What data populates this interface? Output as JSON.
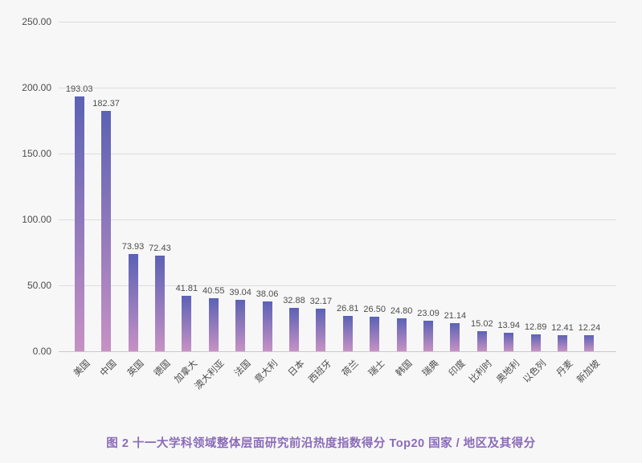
{
  "chart_data": {
    "type": "bar",
    "title": "图 2 十一大学科领域整体层面研究前沿热度指数得分 Top20 国家 / 地区及其得分",
    "categories": [
      "美国",
      "中国",
      "英国",
      "德国",
      "加拿大",
      "澳大利亚",
      "法国",
      "意大利",
      "日本",
      "西班牙",
      "荷兰",
      "瑞士",
      "韩国",
      "瑞典",
      "印度",
      "比利时",
      "奥地利",
      "以色列",
      "丹麦",
      "新加坡"
    ],
    "values": [
      193.03,
      182.37,
      73.93,
      72.43,
      41.81,
      40.55,
      39.04,
      38.06,
      32.88,
      32.17,
      26.81,
      26.5,
      24.8,
      23.09,
      21.14,
      15.02,
      13.94,
      12.89,
      12.41,
      12.24
    ],
    "y_ticks": [
      "0.00",
      "50.00",
      "100.00",
      "150.00",
      "200.00",
      "250.00"
    ],
    "ylim": [
      0,
      250
    ],
    "xlabel": "",
    "ylabel": "",
    "legend_position": "none",
    "grid": true,
    "value_labels_shown": true,
    "x_label_rotation_deg": 45,
    "colors": {
      "background": "#f7f7f8",
      "bar_gradient_top": "#5b62b5",
      "bar_gradient_bottom": "#c791c4",
      "axis_text": "#4d4d4d",
      "gridline": "#dddddd",
      "axis_line": "#c9c9c9",
      "title": "#8b6bb7"
    }
  }
}
